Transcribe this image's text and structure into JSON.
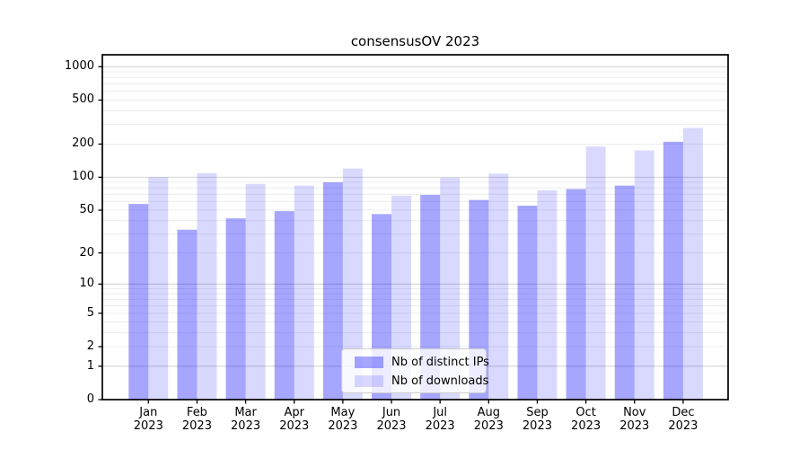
{
  "chart_data": {
    "type": "bar",
    "title": "consensusOV 2023",
    "categories": [
      "Jan",
      "Feb",
      "Mar",
      "Apr",
      "May",
      "Jun",
      "Jul",
      "Aug",
      "Sep",
      "Oct",
      "Nov",
      "Dec"
    ],
    "x_year_label": "2023",
    "series": [
      {
        "name": "Nb of distinct IPs",
        "color": "rgba(0,0,255,0.35)",
        "values": [
          57,
          33,
          42,
          49,
          90,
          46,
          69,
          62,
          55,
          78,
          84,
          210
        ]
      },
      {
        "name": "Nb of downloads",
        "color": "rgba(0,0,255,0.15)",
        "values": [
          100,
          109,
          87,
          84,
          120,
          68,
          99,
          108,
          76,
          190,
          175,
          280
        ]
      }
    ],
    "y_axis": {
      "scale": "log10(value+1)",
      "tick_labels": [
        "1000",
        "500",
        "200",
        "100",
        "50",
        "20",
        "10",
        "5",
        "2",
        "1",
        "0"
      ],
      "tick_values": [
        1000,
        500,
        200,
        100,
        50,
        20,
        10,
        5,
        2,
        1,
        0
      ],
      "range": [
        0,
        1285
      ]
    },
    "grid": {
      "major_values": [
        1,
        10,
        100,
        1000
      ],
      "minor_values": [
        2,
        3,
        4,
        5,
        6,
        7,
        8,
        9,
        20,
        30,
        40,
        50,
        60,
        70,
        80,
        90,
        200,
        300,
        400,
        500,
        600,
        700,
        800,
        900
      ],
      "major_color": "#d4d4d4",
      "minor_color": "#ececec"
    },
    "legend": {
      "position": "lower center"
    },
    "frame_color": "#000000",
    "background_color": "#ffffff"
  }
}
